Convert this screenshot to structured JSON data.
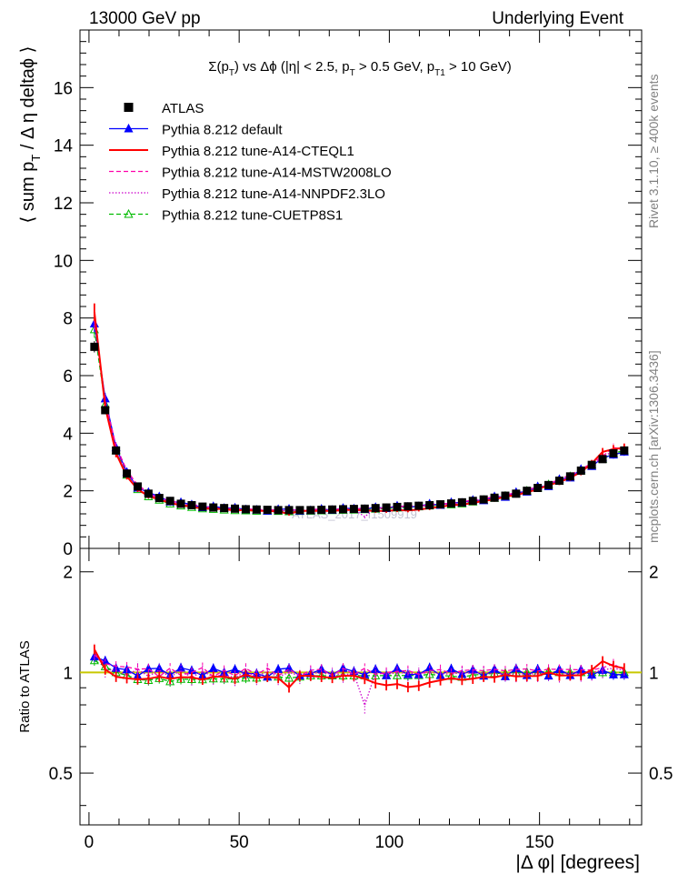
{
  "header": {
    "energy_label": "13000 GeV pp",
    "analysis_label": "Underlying Event",
    "side_label_top": "Rivet 3.1.10, ≥ 400k events",
    "side_label_bottom": "mcplots.cern.ch [arXiv:1306.3436]",
    "watermark": "ATLAS_2017_I1509919"
  },
  "chart_data": [
    {
      "type": "line",
      "panel": "main",
      "title": "Σ(p_T) vs Δφ (|η| < 2.5, p_T > 0.5 GeV, p_T1 > 10 GeV)",
      "ylabel": "⟨ sum p_T / Δ η deltaφ ⟩",
      "xlabel": "|Δ φ| [degrees]",
      "xlim": [
        -3,
        184
      ],
      "ylim": [
        0,
        18
      ],
      "xticks": [
        0,
        50,
        100,
        150
      ],
      "yticks": [
        0,
        2,
        4,
        6,
        8,
        10,
        12,
        14,
        16
      ],
      "legend_position": "top-left",
      "x": [
        1.8,
        5.4,
        9.0,
        12.6,
        16.2,
        19.8,
        23.4,
        27.0,
        30.6,
        34.2,
        37.8,
        41.4,
        45.0,
        48.6,
        52.2,
        55.8,
        59.4,
        63.0,
        66.6,
        70.2,
        73.8,
        77.4,
        81.0,
        84.6,
        88.2,
        91.8,
        95.4,
        99.0,
        102.6,
        106.2,
        109.8,
        113.4,
        117.0,
        120.6,
        124.2,
        127.8,
        131.4,
        135.0,
        138.6,
        142.2,
        145.8,
        149.4,
        153.0,
        156.6,
        160.2,
        163.8,
        167.4,
        171.0,
        174.6,
        178.2
      ],
      "series": [
        {
          "name": "ATLAS",
          "color": "#000000",
          "style": "data",
          "values": [
            7.0,
            4.8,
            3.4,
            2.6,
            2.15,
            1.9,
            1.75,
            1.65,
            1.55,
            1.5,
            1.45,
            1.42,
            1.4,
            1.38,
            1.36,
            1.35,
            1.34,
            1.33,
            1.33,
            1.33,
            1.33,
            1.34,
            1.35,
            1.36,
            1.37,
            1.38,
            1.4,
            1.42,
            1.44,
            1.46,
            1.48,
            1.5,
            1.53,
            1.56,
            1.6,
            1.65,
            1.7,
            1.76,
            1.83,
            1.9,
            2.0,
            2.1,
            2.2,
            2.35,
            2.5,
            2.7,
            2.9,
            3.1,
            3.3,
            3.4
          ]
        },
        {
          "name": "Pythia 8.212 default",
          "color": "#0000ff",
          "style": "solid-triangle",
          "values": [
            7.8,
            5.2,
            3.5,
            2.65,
            2.1,
            1.95,
            1.8,
            1.62,
            1.6,
            1.52,
            1.42,
            1.46,
            1.4,
            1.41,
            1.35,
            1.34,
            1.3,
            1.36,
            1.37,
            1.3,
            1.32,
            1.37,
            1.33,
            1.4,
            1.38,
            1.36,
            1.43,
            1.39,
            1.48,
            1.44,
            1.46,
            1.55,
            1.5,
            1.6,
            1.58,
            1.68,
            1.66,
            1.8,
            1.78,
            1.95,
            1.96,
            2.15,
            2.15,
            2.4,
            2.45,
            2.75,
            2.85,
            3.15,
            3.25,
            3.35
          ]
        },
        {
          "name": "Pythia 8.212 tune-A14-CTEQL1",
          "color": "#ff0000",
          "style": "solid",
          "values": [
            8.2,
            4.9,
            3.3,
            2.5,
            2.05,
            1.82,
            1.7,
            1.58,
            1.5,
            1.45,
            1.38,
            1.38,
            1.36,
            1.32,
            1.34,
            1.3,
            1.3,
            1.28,
            1.2,
            1.3,
            1.3,
            1.3,
            1.3,
            1.33,
            1.34,
            1.32,
            1.3,
            1.3,
            1.33,
            1.32,
            1.35,
            1.4,
            1.45,
            1.5,
            1.52,
            1.58,
            1.65,
            1.7,
            1.8,
            1.85,
            1.95,
            2.05,
            2.2,
            2.3,
            2.45,
            2.65,
            2.95,
            3.35,
            3.45,
            3.5
          ]
        },
        {
          "name": "Pythia 8.212 tune-A14-MSTW2008LO",
          "color": "#ff00aa",
          "style": "dashed",
          "values": [
            7.9,
            5.1,
            3.55,
            2.7,
            2.2,
            1.95,
            1.7,
            1.7,
            1.52,
            1.5,
            1.5,
            1.38,
            1.42,
            1.35,
            1.4,
            1.33,
            1.38,
            1.3,
            1.36,
            1.3,
            1.35,
            1.37,
            1.32,
            1.4,
            1.35,
            1.42,
            1.38,
            1.42,
            1.45,
            1.48,
            1.46,
            1.52,
            1.56,
            1.55,
            1.62,
            1.68,
            1.72,
            1.8,
            1.85,
            1.94,
            2.05,
            2.12,
            2.25,
            2.4,
            2.55,
            2.75,
            2.95,
            3.2,
            3.5,
            3.45
          ]
        },
        {
          "name": "Pythia 8.212 tune-A14-NNPDF2.3LO",
          "color": "#cc00cc",
          "style": "dotted",
          "values": [
            8.1,
            4.9,
            3.45,
            2.55,
            2.2,
            1.85,
            1.78,
            1.6,
            1.57,
            1.45,
            1.46,
            1.38,
            1.38,
            1.33,
            1.37,
            1.31,
            1.35,
            1.29,
            1.33,
            1.3,
            1.33,
            1.33,
            1.34,
            1.34,
            1.36,
            1.1,
            1.4,
            1.4,
            1.44,
            1.45,
            1.47,
            1.5,
            1.52,
            1.54,
            1.6,
            1.64,
            1.7,
            1.74,
            1.82,
            1.88,
            1.98,
            2.08,
            2.2,
            2.32,
            2.5,
            2.68,
            2.9,
            3.15,
            3.4,
            3.45
          ]
        },
        {
          "name": "Pythia 8.212 tune-CUETP8S1",
          "color": "#00bb00",
          "style": "dashed-open-triangle",
          "values": [
            7.6,
            5.0,
            3.4,
            2.55,
            2.05,
            1.8,
            1.68,
            1.55,
            1.48,
            1.43,
            1.38,
            1.36,
            1.34,
            1.32,
            1.31,
            1.3,
            1.3,
            1.29,
            1.28,
            1.29,
            1.3,
            1.31,
            1.32,
            1.33,
            1.34,
            1.35,
            1.37,
            1.39,
            1.41,
            1.43,
            1.45,
            1.48,
            1.5,
            1.52,
            1.55,
            1.62,
            1.68,
            1.75,
            1.82,
            1.9,
            2.0,
            2.1,
            2.22,
            2.35,
            2.5,
            2.7,
            2.9,
            3.1,
            3.3,
            3.4
          ]
        }
      ]
    },
    {
      "type": "line",
      "panel": "ratio",
      "ylabel": "Ratio to ATLAS",
      "xlabel": "|Δ φ| [degrees]",
      "xlim": [
        -3,
        184
      ],
      "ylim": [
        0.35,
        2.35
      ],
      "xticks": [
        0,
        50,
        100,
        150
      ],
      "yticks": [
        0.5,
        1,
        2
      ],
      "reference_line": 1,
      "reference_color": "#c8c800"
    }
  ]
}
